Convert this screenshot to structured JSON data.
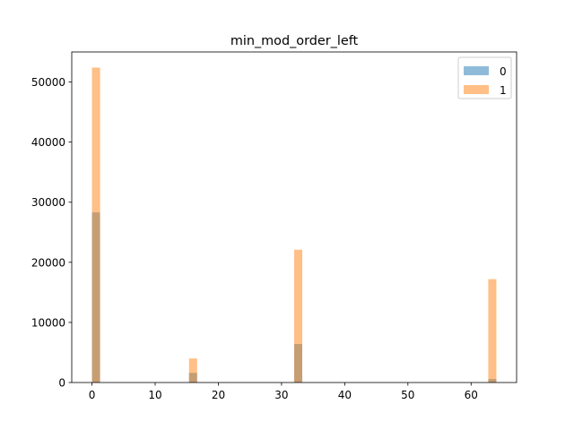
{
  "chart_data": {
    "type": "histogram",
    "title": "min_mod_order_left",
    "xlabel": "",
    "ylabel": "",
    "xlim": [
      -3.2,
      67.2
    ],
    "ylim": [
      0,
      55000
    ],
    "x_ticks": [
      0,
      10,
      20,
      30,
      40,
      50,
      60
    ],
    "y_ticks": [
      0,
      10000,
      20000,
      30000,
      40000,
      50000
    ],
    "bin_edges": [
      0,
      1.28,
      15.36,
      16.64,
      32.0,
      33.28,
      62.72,
      64.0
    ],
    "series": [
      {
        "name": "0",
        "color": "#1f77b4",
        "opacity": 0.5,
        "bars": [
          {
            "x0": 0,
            "x1": 1.28,
            "value": 28300
          },
          {
            "x0": 15.36,
            "x1": 16.64,
            "value": 1600
          },
          {
            "x0": 32.0,
            "x1": 33.28,
            "value": 6400
          },
          {
            "x0": 62.72,
            "x1": 64.0,
            "value": 600
          }
        ]
      },
      {
        "name": "1",
        "color": "#ff7f0e",
        "opacity": 0.5,
        "bars": [
          {
            "x0": 0,
            "x1": 1.28,
            "value": 52400
          },
          {
            "x0": 15.36,
            "x1": 16.64,
            "value": 4000
          },
          {
            "x0": 32.0,
            "x1": 33.28,
            "value": 22100
          },
          {
            "x0": 62.72,
            "x1": 64.0,
            "value": 17200
          }
        ]
      }
    ],
    "legend": {
      "position": "top-right",
      "entries": [
        "0",
        "1"
      ]
    },
    "grid": false
  }
}
